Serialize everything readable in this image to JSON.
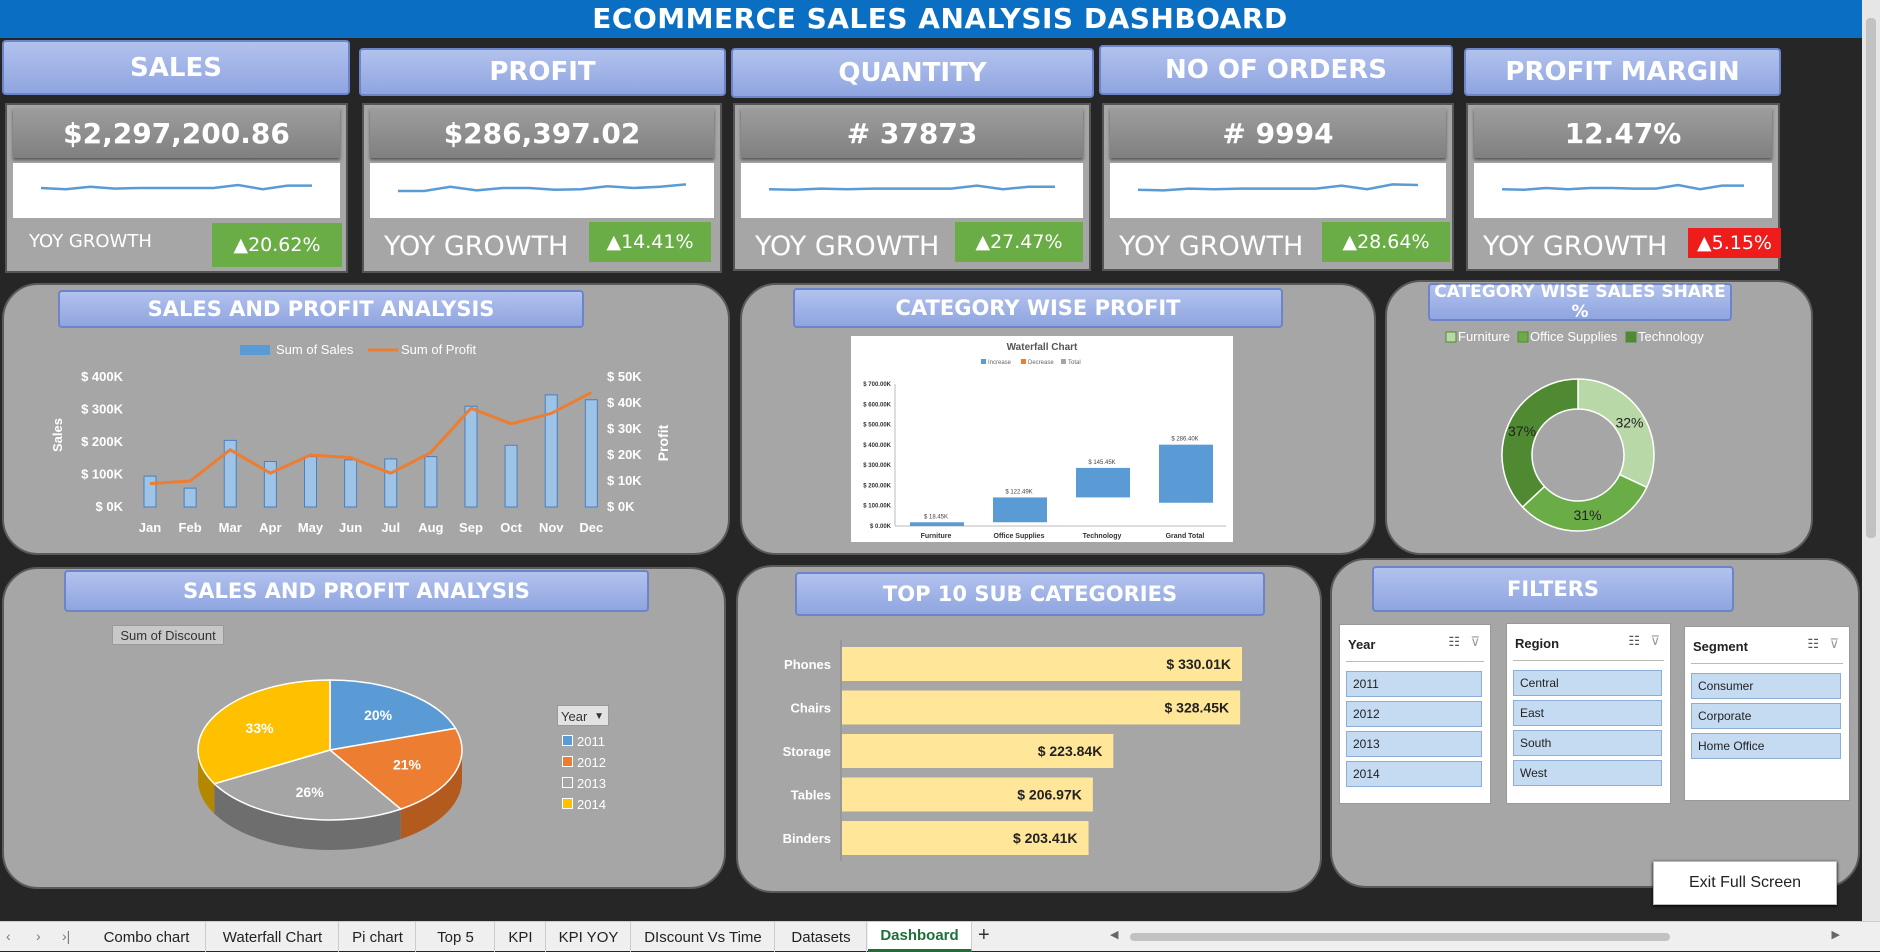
{
  "header": {
    "title": "ECOMMERCE SALES ANALYSIS DASHBOARD"
  },
  "kpis": [
    {
      "label": "SALES",
      "value": "$2,297,200.86",
      "yoy_label": "YOY GROWTH",
      "yoy": "▲20.62%",
      "yoy_color": "#6aad46",
      "spark": [
        50,
        48,
        52,
        49,
        50,
        50,
        50,
        50,
        55,
        48,
        54,
        54
      ]
    },
    {
      "label": "PROFIT",
      "value": "$286,397.02",
      "yoy_label": "YOY GROWTH",
      "yoy": "▲14.41%",
      "yoy_color": "#6aad46",
      "spark": [
        45,
        45,
        52,
        46,
        50,
        50,
        47,
        48,
        53,
        50,
        52,
        56
      ]
    },
    {
      "label": "QUANTITY",
      "value": "# 37873",
      "yoy_label": "YOY GROWTH",
      "yoy": "▲27.47%",
      "yoy_color": "#6aad46",
      "spark": [
        48,
        47,
        49,
        48,
        49,
        49,
        49,
        49,
        54,
        48,
        52,
        52
      ]
    },
    {
      "label": "NO OF ORDERS",
      "value": "# 9994",
      "yoy_label": "YOY GROWTH",
      "yoy": "▲28.64%",
      "yoy_color": "#6aad46",
      "spark": [
        47,
        46,
        49,
        48,
        49,
        49,
        49,
        49,
        54,
        48,
        56,
        55
      ]
    },
    {
      "label": "PROFIT MARGIN",
      "value": "12.47%",
      "yoy_label": "YOY GROWTH",
      "yoy": "▲5.15%",
      "yoy_color": "#ef1c1c",
      "spark": [
        48,
        47,
        50,
        48,
        50,
        50,
        49,
        49,
        55,
        48,
        54,
        54
      ]
    }
  ],
  "sales_profit": {
    "title": "SALES AND PROFIT ANALYSIS",
    "legend_sales": "Sum of Sales",
    "legend_profit": "Sum of Profit",
    "ylabel_left": "Sales",
    "ylabel_right": "Profit",
    "left_ticks": [
      "$ 400K",
      "$ 300K",
      "$ 200K",
      "$ 100K",
      "$ 0K"
    ],
    "right_ticks": [
      "$ 50K",
      "$ 40K",
      "$ 30K",
      "$ 20K",
      "$ 10K",
      "$ 0K"
    ]
  },
  "waterfall": {
    "title": "CATEGORY WISE PROFIT",
    "chart_title": "Waterfall Chart",
    "legend": [
      "Increase",
      "Decrease",
      "Total"
    ],
    "yticks": [
      "$ 700.00K",
      "$ 600.00K",
      "$ 500.00K",
      "$ 400.00K",
      "$ 300.00K",
      "$ 200.00K",
      "$ 100.00K",
      "$ 0.00K"
    ]
  },
  "donut": {
    "title": "CATEGORY WISE SALES SHARE %"
  },
  "discount": {
    "title": "SALES AND PROFIT ANALYSIS",
    "field_button": "Sum of Discount",
    "filter_label": "Year"
  },
  "top10": {
    "title": "TOP 10 SUB CATEGORIES"
  },
  "filters": {
    "title": "FILTERS",
    "slicers": [
      {
        "title": "Year",
        "items": [
          "2011",
          "2012",
          "2013",
          "2014"
        ]
      },
      {
        "title": "Region",
        "items": [
          "Central",
          "East",
          "South",
          "West"
        ]
      },
      {
        "title": "Segment",
        "items": [
          "Consumer",
          "Corporate",
          "Home Office"
        ]
      }
    ]
  },
  "exit_button": "Exit Full Screen",
  "sheet_tabs": [
    "Combo chart",
    "Waterfall Chart",
    "Pi chart",
    "Top  5",
    "KPI",
    "KPI YOY",
    "DIscount Vs Time",
    "Datasets",
    "Dashboard"
  ],
  "add_sheet": "+",
  "chart_data": [
    {
      "type": "bar",
      "title": "SALES AND PROFIT ANALYSIS",
      "categories": [
        "Jan",
        "Feb",
        "Mar",
        "Apr",
        "May",
        "Jun",
        "Jul",
        "Aug",
        "Sep",
        "Oct",
        "Nov",
        "Dec"
      ],
      "series": [
        {
          "name": "Sum of Sales",
          "values": [
            95,
            58,
            205,
            140,
            155,
            145,
            148,
            155,
            310,
            190,
            345,
            330
          ]
        },
        {
          "name": "Sum of Profit",
          "values": [
            9,
            10,
            22,
            13,
            20,
            19,
            13,
            21,
            38,
            32,
            36,
            44
          ]
        }
      ],
      "ylim": [
        0,
        400
      ],
      "ylim_right": [
        0,
        50
      ]
    },
    {
      "type": "bar",
      "title": "Waterfall Chart",
      "categories": [
        "Furniture",
        "Office Supplies",
        "Technology",
        "Grand Total"
      ],
      "values": [
        18.45,
        122.49,
        145.45,
        286.4
      ],
      "labels": [
        "$ 18.45K",
        "$ 122.49K",
        "$ 145.45K",
        "$ 286.40K"
      ],
      "ylim": [
        0,
        700
      ]
    },
    {
      "type": "pie",
      "title": "CATEGORY WISE SALES SHARE %",
      "categories": [
        "Furniture",
        "Office Supplies",
        "Technology"
      ],
      "values": [
        32,
        31,
        37
      ],
      "labels": [
        "32%",
        "31%",
        "37%"
      ],
      "colors": [
        "#b9d8a8",
        "#6aad46",
        "#4f8a32"
      ]
    },
    {
      "type": "pie",
      "title": "SALES AND PROFIT ANALYSIS",
      "categories": [
        "2011",
        "2012",
        "2013",
        "2014"
      ],
      "values": [
        20,
        21,
        26,
        33
      ],
      "labels": [
        "20%",
        "21%",
        "26%",
        "33%"
      ],
      "colors": [
        "#5b9bd5",
        "#ed7d31",
        "#a5a5a5",
        "#ffc000"
      ]
    },
    {
      "type": "bar",
      "title": "TOP 10 SUB CATEGORIES",
      "categories": [
        "Phones",
        "Chairs",
        "Storage",
        "Tables",
        "Binders"
      ],
      "values": [
        330.01,
        328.45,
        223.84,
        206.97,
        203.41
      ],
      "labels": [
        "$ 330.01K",
        "$ 328.45K",
        "$ 223.84K",
        "$ 206.97K",
        "$ 203.41K"
      ]
    }
  ]
}
